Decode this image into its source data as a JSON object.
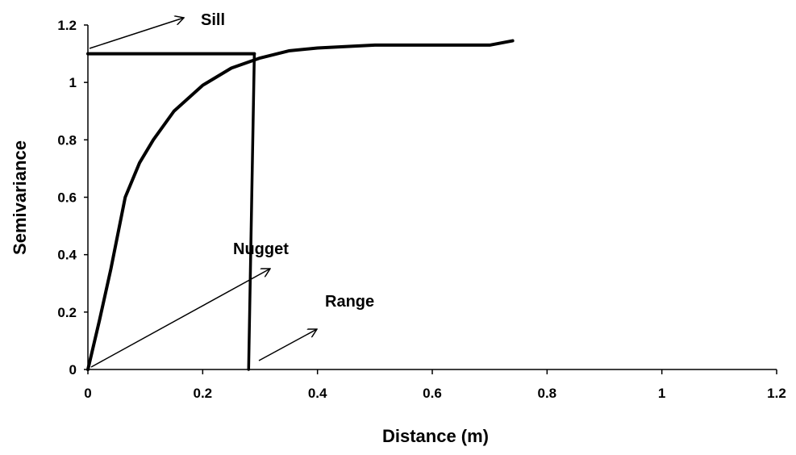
{
  "chart_data": {
    "type": "line",
    "x_label": "Distance (m)",
    "y_label": "Semivariance",
    "x": [
      0,
      0.02,
      0.04,
      0.065,
      0.09,
      0.114,
      0.15,
      0.2,
      0.25,
      0.3,
      0.35,
      0.4,
      0.5,
      0.6,
      0.7,
      0.74
    ],
    "values": [
      0,
      0.17,
      0.35,
      0.6,
      0.72,
      0.8,
      0.9,
      0.99,
      1.05,
      1.085,
      1.11,
      1.12,
      1.13,
      1.13,
      1.13,
      1.145
    ],
    "color": "#000000",
    "sill_line": {
      "x": [
        0,
        0.29
      ],
      "y": [
        1.1,
        1.1
      ]
    },
    "range_line": {
      "x": [
        0.29,
        0.28
      ],
      "y": [
        1.1,
        0
      ]
    },
    "annotations": [
      "Sill",
      "Nugget",
      "Range"
    ],
    "xlim": [
      0,
      1.2
    ],
    "ylim": [
      0,
      1.2
    ],
    "xticks": [
      0,
      0.2,
      0.4,
      0.6,
      0.8,
      1,
      1.2
    ],
    "yticks": [
      0,
      0.2,
      0.4,
      0.6,
      0.8,
      1,
      1.2
    ],
    "grid": false
  }
}
